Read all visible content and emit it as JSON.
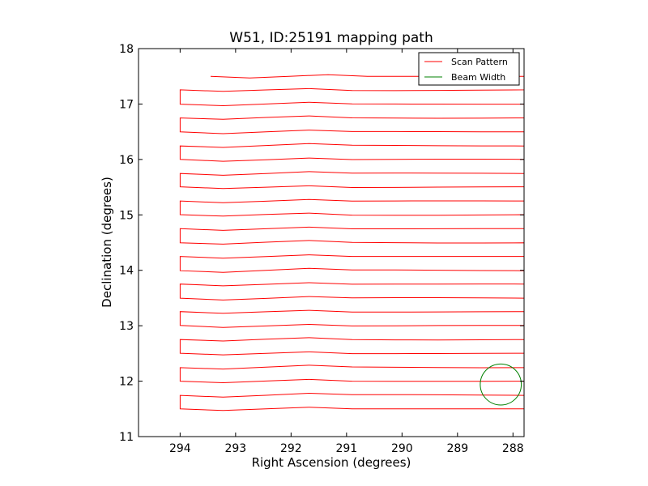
{
  "chart_data": {
    "type": "line",
    "title": "W51, ID:25191 mapping path",
    "xlabel": "Right Ascension (degrees)",
    "ylabel": "Declination (degrees)",
    "xlim": [
      294.75,
      287.8
    ],
    "ylim": [
      11,
      18
    ],
    "x_inverted": true,
    "x_ticks": [
      294,
      293,
      292,
      291,
      290,
      289,
      288
    ],
    "y_ticks": [
      11,
      12,
      13,
      14,
      15,
      16,
      17,
      18
    ],
    "grid": false,
    "legend_position": "top-right",
    "series": [
      {
        "name": "Scan Pattern",
        "color": "#ff0000",
        "kind": "scan_path",
        "ra_start": 294.0,
        "ra_end": 287.8,
        "ra_first_start": 293.45,
        "dec_top": 17.5,
        "dec_bottom": 11.5,
        "row_spacing": 0.25,
        "row_count": 25
      },
      {
        "name": "Beam Width",
        "color": "#008000",
        "kind": "circle",
        "center_ra": 288.22,
        "center_dec": 11.94,
        "radius_deg": 0.37
      }
    ]
  }
}
